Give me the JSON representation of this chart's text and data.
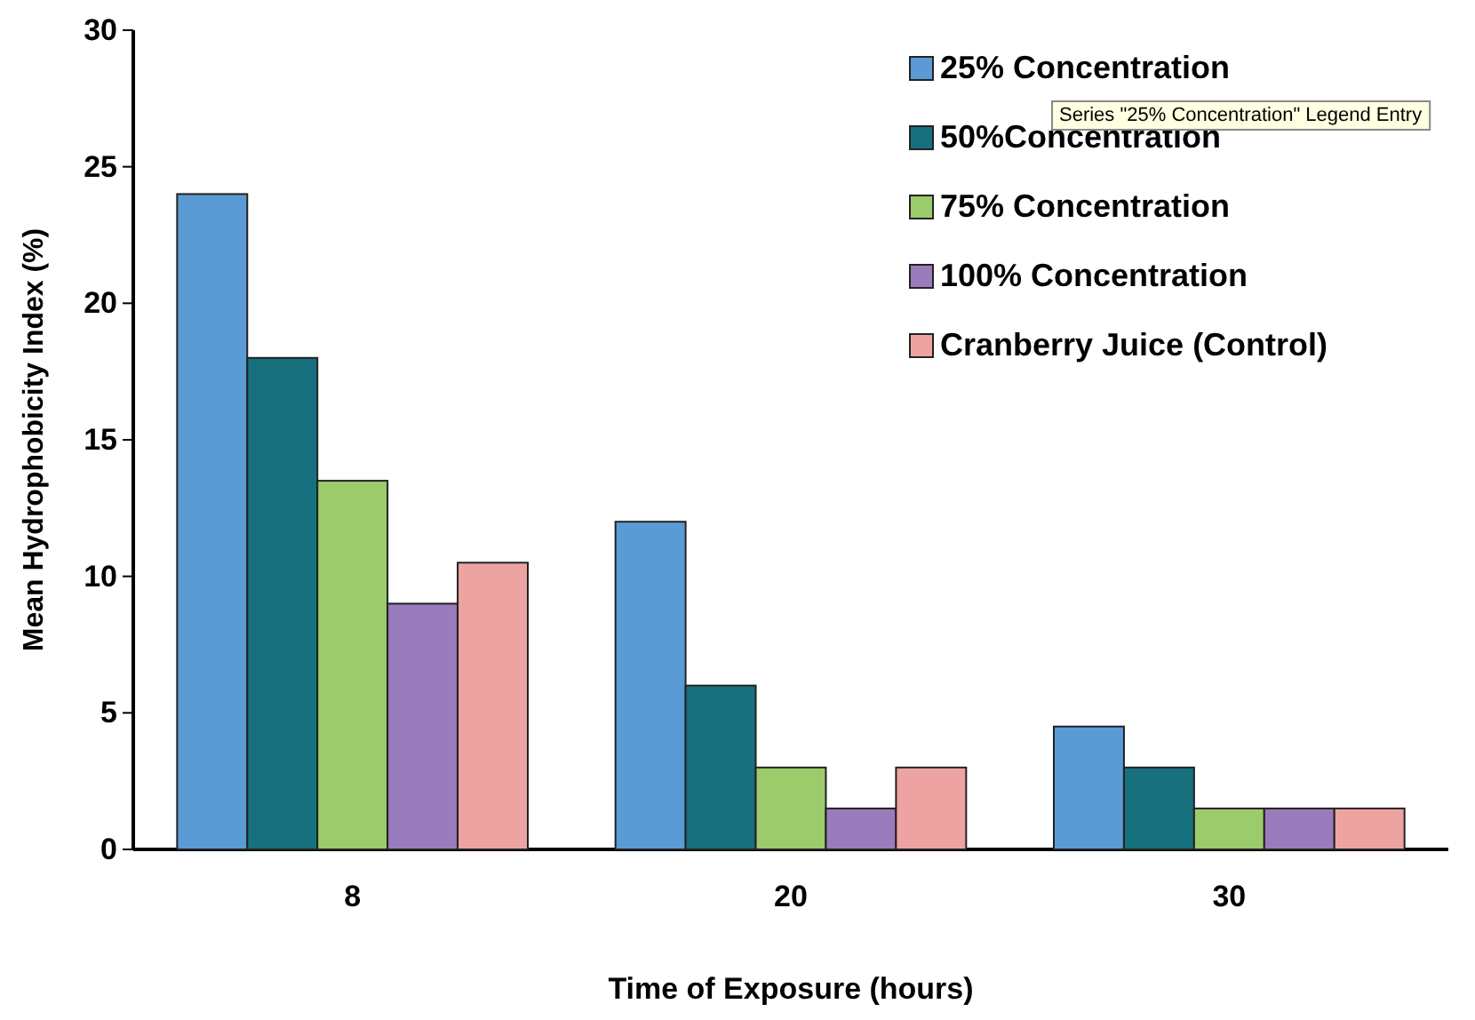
{
  "chart_data": {
    "type": "bar",
    "categories": [
      "8",
      "20",
      "30"
    ],
    "series": [
      {
        "name": "25% Concentration",
        "color": "#5b9bd5",
        "values": [
          24,
          12,
          4.5
        ]
      },
      {
        "name": "50%Concentration",
        "color": "#17707e",
        "values": [
          18,
          6,
          3
        ]
      },
      {
        "name": "75% Concentration",
        "color": "#9ccb6b",
        "values": [
          13.5,
          3,
          1.5
        ]
      },
      {
        "name": "100% Concentration",
        "color": "#9a7bbb",
        "values": [
          9,
          1.5,
          1.5
        ]
      },
      {
        "name": "Cranberry Juice (Control)",
        "color": "#eea3a3",
        "values": [
          10.5,
          3,
          1.5
        ]
      }
    ],
    "xlabel": "Time of Exposure (hours)",
    "ylabel": "Mean Hydrophobicity Index (%)",
    "ylim": [
      0,
      30
    ],
    "yticks": [
      0,
      5,
      10,
      15,
      20,
      25,
      30
    ],
    "grid": false,
    "legend": "top right",
    "annotations": [
      "Series \"25% Concentration\" Legend Entry"
    ]
  }
}
